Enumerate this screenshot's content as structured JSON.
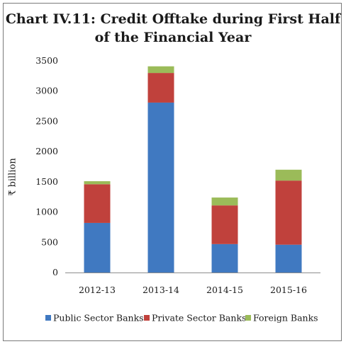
{
  "chart_data": {
    "type": "bar",
    "stacked": true,
    "title_lines": [
      "Chart IV.11: Credit Offtake during First Half",
      "of the Financial Year"
    ],
    "ylabel": "₹ billion",
    "xlabel": "",
    "categories": [
      "2012-13",
      "2013-14",
      "2014-15",
      "2015-16"
    ],
    "ylim": [
      0,
      3500
    ],
    "yticks": [
      0,
      500,
      1000,
      1500,
      2000,
      2500,
      3000,
      3500
    ],
    "grid": false,
    "legend_position": "bottom",
    "series": [
      {
        "name": "Public Sector Banks",
        "color": "#4079c1",
        "values": [
          820,
          2810,
          470,
          460
        ]
      },
      {
        "name": "Private Sector Banks",
        "color": "#c0413c",
        "values": [
          640,
          490,
          640,
          1060
        ]
      },
      {
        "name": "Foreign Banks",
        "color": "#9bbb59",
        "values": [
          50,
          110,
          130,
          180
        ]
      }
    ]
  }
}
